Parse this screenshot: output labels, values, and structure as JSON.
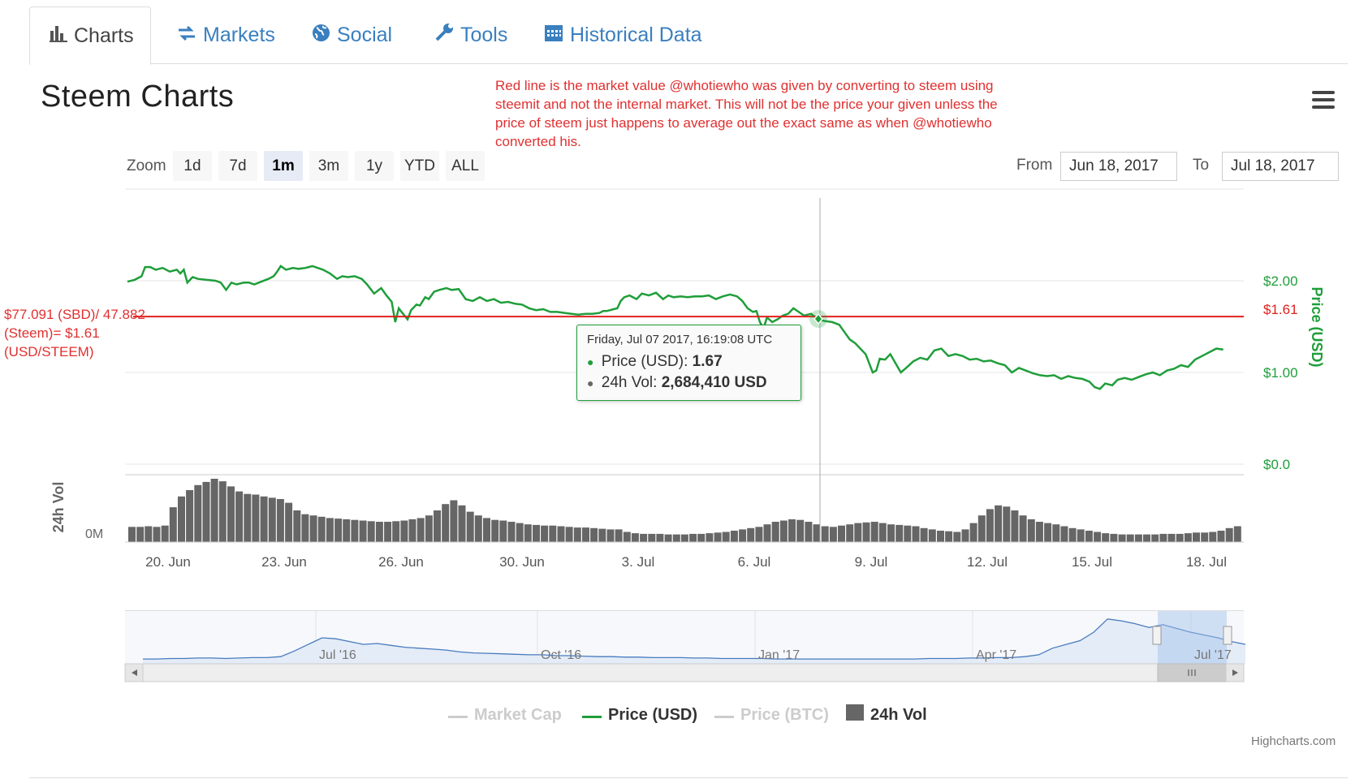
{
  "tabs": [
    {
      "label": "Charts",
      "icon": "bar-chart-icon",
      "active": true
    },
    {
      "label": "Markets",
      "icon": "exchange-arrows-icon",
      "active": false
    },
    {
      "label": "Social",
      "icon": "globe-icon",
      "active": false
    },
    {
      "label": "Tools",
      "icon": "wrench-icon",
      "active": false
    },
    {
      "label": "Historical Data",
      "icon": "calendar-icon",
      "active": false
    }
  ],
  "page_title": "Steem Charts",
  "annotation": "Red line is the market value @whotiewho was given by converting to steem using steemit and not the internal market. This will not be the price your given unless the price of steem just happens to average out the exact same as when @whotiewho converted his.",
  "left_note": "$77.091 (SBD)/ 47.882 (Steem)= $1.61 (USD/STEEM)",
  "range_selector": {
    "zoom_label": "Zoom",
    "buttons": [
      "1d",
      "7d",
      "1m",
      "3m",
      "1y",
      "YTD",
      "ALL"
    ],
    "selected": "1m",
    "from_label": "From",
    "from_value": "Jun 18, 2017",
    "to_label": "To",
    "to_value": "Jul 18, 2017"
  },
  "tooltip": {
    "date": "Friday, Jul 07 2017, 16:19:08 UTC",
    "price_label": "Price (USD):",
    "price_value": "1.67",
    "vol_label": "24h Vol:",
    "vol_value": "2,684,410 USD",
    "price_color": "#1f9e3a",
    "vol_color": "#666666"
  },
  "legend": [
    {
      "label": "Market Cap",
      "enabled": false,
      "color": "#cccccc"
    },
    {
      "label": "Price (USD)",
      "enabled": true,
      "color": "#1f9e3a"
    },
    {
      "label": "Price (BTC)",
      "enabled": false,
      "color": "#cccccc"
    },
    {
      "label": "24h Vol",
      "enabled": true,
      "color": "#666666"
    }
  ],
  "credits": "Highcharts.com",
  "colors": {
    "price": "#1f9e3a",
    "volume": "#666666",
    "reference": "#e02020",
    "navigator": "#4a7bbf",
    "accent_link": "#3a7fbf"
  },
  "chart_data": {
    "type": "line",
    "series": [
      {
        "name": "Price (USD)",
        "axis": "right",
        "x_days_label": "Jun 19 2017 to Jul 18 2017 (date index in days)",
        "values": [
          [
            0.0,
            1.99
          ],
          [
            0.4,
            2.01
          ],
          [
            0.8,
            2.05
          ],
          [
            1.0,
            2.15
          ],
          [
            1.3,
            2.15
          ],
          [
            1.6,
            2.12
          ],
          [
            2.0,
            2.14
          ],
          [
            2.4,
            2.1
          ],
          [
            2.8,
            2.12
          ],
          [
            3.0,
            2.08
          ],
          [
            3.2,
            2.12
          ],
          [
            3.4,
            1.98
          ],
          [
            3.7,
            2.04
          ],
          [
            4.0,
            2.02
          ],
          [
            4.5,
            2.01
          ],
          [
            5.0,
            2.0
          ],
          [
            5.3,
            1.98
          ],
          [
            5.6,
            1.9
          ],
          [
            5.9,
            1.98
          ],
          [
            6.2,
            1.96
          ],
          [
            6.6,
            1.98
          ],
          [
            6.9,
            1.98
          ],
          [
            7.2,
            1.96
          ],
          [
            7.6,
            1.99
          ],
          [
            8.0,
            2.02
          ],
          [
            8.3,
            2.05
          ],
          [
            8.5,
            2.1
          ],
          [
            8.7,
            2.16
          ],
          [
            9.0,
            2.12
          ],
          [
            9.4,
            2.14
          ],
          [
            9.7,
            2.13
          ],
          [
            10.1,
            2.14
          ],
          [
            10.5,
            2.16
          ],
          [
            10.8,
            2.14
          ],
          [
            11.1,
            2.12
          ],
          [
            11.5,
            2.08
          ],
          [
            11.9,
            2.02
          ],
          [
            12.2,
            2.05
          ],
          [
            12.5,
            2.04
          ],
          [
            12.9,
            2.05
          ],
          [
            13.3,
            2.02
          ],
          [
            13.6,
            1.96
          ],
          [
            14.0,
            1.86
          ],
          [
            14.4,
            1.92
          ],
          [
            14.7,
            1.84
          ],
          [
            15.0,
            1.77
          ],
          [
            15.2,
            1.55
          ],
          [
            15.4,
            1.7
          ],
          [
            15.6,
            1.65
          ],
          [
            15.9,
            1.58
          ],
          [
            16.1,
            1.68
          ],
          [
            16.4,
            1.74
          ],
          [
            16.6,
            1.73
          ],
          [
            16.9,
            1.82
          ],
          [
            17.1,
            1.8
          ],
          [
            17.4,
            1.88
          ],
          [
            17.7,
            1.9
          ],
          [
            18.1,
            1.92
          ],
          [
            18.4,
            1.9
          ],
          [
            18.8,
            1.91
          ],
          [
            19.2,
            1.8
          ],
          [
            19.6,
            1.78
          ],
          [
            20.0,
            1.82
          ],
          [
            20.4,
            1.78
          ],
          [
            20.8,
            1.8
          ],
          [
            21.2,
            1.76
          ],
          [
            21.6,
            1.77
          ],
          [
            22.0,
            1.75
          ],
          [
            22.4,
            1.74
          ],
          [
            22.8,
            1.7
          ],
          [
            23.2,
            1.68
          ],
          [
            23.6,
            1.69
          ],
          [
            24.0,
            1.66
          ],
          [
            24.4,
            1.66
          ],
          [
            24.8,
            1.65
          ],
          [
            25.2,
            1.64
          ],
          [
            25.6,
            1.63
          ],
          [
            26.0,
            1.64
          ],
          [
            26.4,
            1.64
          ],
          [
            26.8,
            1.65
          ],
          [
            27.0,
            1.67
          ],
          [
            27.2,
            1.67
          ],
          [
            27.4,
            1.68
          ],
          [
            27.6,
            1.69
          ],
          [
            27.8,
            1.7
          ],
          [
            28.0,
            1.78
          ],
          [
            28.2,
            1.82
          ],
          [
            28.5,
            1.84
          ],
          [
            28.9,
            1.8
          ],
          [
            29.2,
            1.86
          ],
          [
            29.6,
            1.84
          ],
          [
            30.0,
            1.87
          ],
          [
            30.4,
            1.8
          ],
          [
            30.7,
            1.84
          ],
          [
            31.0,
            1.82
          ],
          [
            31.4,
            1.83
          ],
          [
            31.8,
            1.82
          ],
          [
            32.2,
            1.83
          ],
          [
            32.6,
            1.83
          ],
          [
            33.0,
            1.84
          ],
          [
            33.4,
            1.8
          ],
          [
            33.8,
            1.83
          ],
          [
            34.2,
            1.85
          ],
          [
            34.6,
            1.83
          ],
          [
            34.9,
            1.78
          ],
          [
            35.2,
            1.7
          ],
          [
            35.5,
            1.66
          ],
          [
            35.7,
            1.67
          ],
          [
            35.9,
            1.55
          ],
          [
            36.1,
            1.48
          ],
          [
            36.3,
            1.6
          ],
          [
            36.6,
            1.55
          ],
          [
            36.9,
            1.58
          ],
          [
            37.2,
            1.62
          ],
          [
            37.5,
            1.64
          ],
          [
            37.8,
            1.7
          ],
          [
            38.1,
            1.66
          ],
          [
            38.4,
            1.62
          ],
          [
            38.8,
            1.64
          ],
          [
            39.2,
            1.58
          ],
          [
            39.6,
            1.56
          ],
          [
            40.0,
            1.55
          ],
          [
            40.4,
            1.52
          ],
          [
            40.7,
            1.44
          ],
          [
            41.0,
            1.36
          ],
          [
            41.3,
            1.32
          ],
          [
            41.6,
            1.26
          ],
          [
            41.9,
            1.2
          ],
          [
            42.1,
            1.1
          ],
          [
            42.3,
            1.0
          ],
          [
            42.5,
            1.02
          ],
          [
            42.7,
            1.15
          ],
          [
            43.0,
            1.14
          ],
          [
            43.3,
            1.2
          ],
          [
            43.6,
            1.1
          ],
          [
            43.9,
            1.0
          ],
          [
            44.2,
            1.05
          ],
          [
            44.6,
            1.12
          ],
          [
            45.0,
            1.16
          ],
          [
            45.4,
            1.14
          ],
          [
            45.8,
            1.24
          ],
          [
            46.2,
            1.26
          ],
          [
            46.6,
            1.18
          ],
          [
            47.0,
            1.2
          ],
          [
            47.4,
            1.18
          ],
          [
            47.8,
            1.14
          ],
          [
            48.2,
            1.15
          ],
          [
            48.6,
            1.12
          ],
          [
            49.0,
            1.13
          ],
          [
            49.4,
            1.1
          ],
          [
            49.8,
            1.08
          ],
          [
            50.2,
            1.0
          ],
          [
            50.6,
            1.05
          ],
          [
            51.0,
            1.02
          ],
          [
            51.4,
            0.99
          ],
          [
            51.8,
            0.97
          ],
          [
            52.2,
            0.96
          ],
          [
            52.6,
            0.97
          ],
          [
            53.0,
            0.93
          ],
          [
            53.4,
            0.96
          ],
          [
            53.8,
            0.94
          ],
          [
            54.2,
            0.93
          ],
          [
            54.6,
            0.9
          ],
          [
            54.9,
            0.84
          ],
          [
            55.2,
            0.82
          ],
          [
            55.5,
            0.88
          ],
          [
            55.9,
            0.86
          ],
          [
            56.2,
            0.92
          ],
          [
            56.6,
            0.94
          ],
          [
            57.0,
            0.92
          ],
          [
            57.4,
            0.95
          ],
          [
            57.8,
            0.98
          ],
          [
            58.2,
            1.0
          ],
          [
            58.6,
            0.97
          ],
          [
            59.0,
            1.02
          ],
          [
            59.4,
            1.04
          ],
          [
            59.8,
            1.08
          ],
          [
            60.2,
            1.06
          ],
          [
            60.6,
            1.14
          ],
          [
            61.0,
            1.18
          ],
          [
            61.4,
            1.22
          ],
          [
            61.8,
            1.26
          ],
          [
            62.2,
            1.25
          ]
        ]
      },
      {
        "name": "24h Vol",
        "axis": "volume",
        "weights": [
          0.24,
          0.24,
          0.25,
          0.24,
          0.26,
          0.55,
          0.72,
          0.82,
          0.9,
          0.95,
          1.0,
          0.96,
          0.88,
          0.8,
          0.76,
          0.75,
          0.72,
          0.7,
          0.68,
          0.62,
          0.5,
          0.44,
          0.42,
          0.4,
          0.38,
          0.37,
          0.36,
          0.35,
          0.34,
          0.33,
          0.32,
          0.32,
          0.33,
          0.34,
          0.36,
          0.38,
          0.42,
          0.5,
          0.6,
          0.66,
          0.58,
          0.48,
          0.42,
          0.38,
          0.35,
          0.34,
          0.32,
          0.3,
          0.28,
          0.27,
          0.26,
          0.26,
          0.25,
          0.24,
          0.23,
          0.23,
          0.22,
          0.21,
          0.2,
          0.2,
          0.16,
          0.14,
          0.13,
          0.13,
          0.13,
          0.12,
          0.12,
          0.12,
          0.13,
          0.13,
          0.14,
          0.15,
          0.16,
          0.18,
          0.2,
          0.22,
          0.24,
          0.28,
          0.32,
          0.34,
          0.36,
          0.35,
          0.32,
          0.28,
          0.25,
          0.24,
          0.26,
          0.28,
          0.3,
          0.31,
          0.32,
          0.3,
          0.28,
          0.27,
          0.26,
          0.25,
          0.22,
          0.2,
          0.18,
          0.17,
          0.16,
          0.2,
          0.3,
          0.42,
          0.52,
          0.58,
          0.56,
          0.5,
          0.42,
          0.36,
          0.32,
          0.3,
          0.28,
          0.25,
          0.22,
          0.2,
          0.18,
          0.16,
          0.14,
          0.13,
          0.12,
          0.12,
          0.12,
          0.12,
          0.12,
          0.13,
          0.13,
          0.13,
          0.14,
          0.15,
          0.15,
          0.16,
          0.18,
          0.22,
          0.25
        ]
      }
    ],
    "x_tick_labels": [
      "20. Jun",
      "23. Jun",
      "26. Jun",
      "30. Jun",
      "3. Jul",
      "6. Jul",
      "9. Jul",
      "12. Jul",
      "15. Jul",
      "18. Jul"
    ],
    "y_tick_labels": [
      "$2.00",
      "$1.00",
      "$0.0"
    ],
    "y_label": "Price (USD)",
    "ylim": [
      0,
      3
    ],
    "volume_label": "24h Vol",
    "volume_tick": "0M",
    "reference_line": {
      "value": 1.61,
      "label": "$1.61"
    },
    "navigator": {
      "tick_labels": [
        "Jul '16",
        "Oct '16",
        "Jan '17",
        "Apr '17",
        "Jul '17"
      ],
      "values": [
        0.05,
        0.05,
        0.06,
        0.06,
        0.07,
        0.07,
        0.06,
        0.07,
        0.08,
        0.08,
        0.1,
        0.22,
        0.36,
        0.5,
        0.48,
        0.42,
        0.36,
        0.38,
        0.34,
        0.3,
        0.28,
        0.26,
        0.24,
        0.2,
        0.18,
        0.17,
        0.16,
        0.15,
        0.14,
        0.14,
        0.12,
        0.12,
        0.11,
        0.1,
        0.1,
        0.09,
        0.09,
        0.08,
        0.08,
        0.08,
        0.07,
        0.07,
        0.06,
        0.06,
        0.06,
        0.06,
        0.05,
        0.05,
        0.05,
        0.05,
        0.05,
        0.05,
        0.05,
        0.05,
        0.05,
        0.05,
        0.05,
        0.06,
        0.06,
        0.06,
        0.07,
        0.07,
        0.08,
        0.08,
        0.1,
        0.14,
        0.28,
        0.36,
        0.44,
        0.62,
        0.9,
        0.86,
        0.8,
        0.72,
        0.78,
        0.7,
        0.62,
        0.56,
        0.5,
        0.42,
        0.36
      ]
    }
  }
}
